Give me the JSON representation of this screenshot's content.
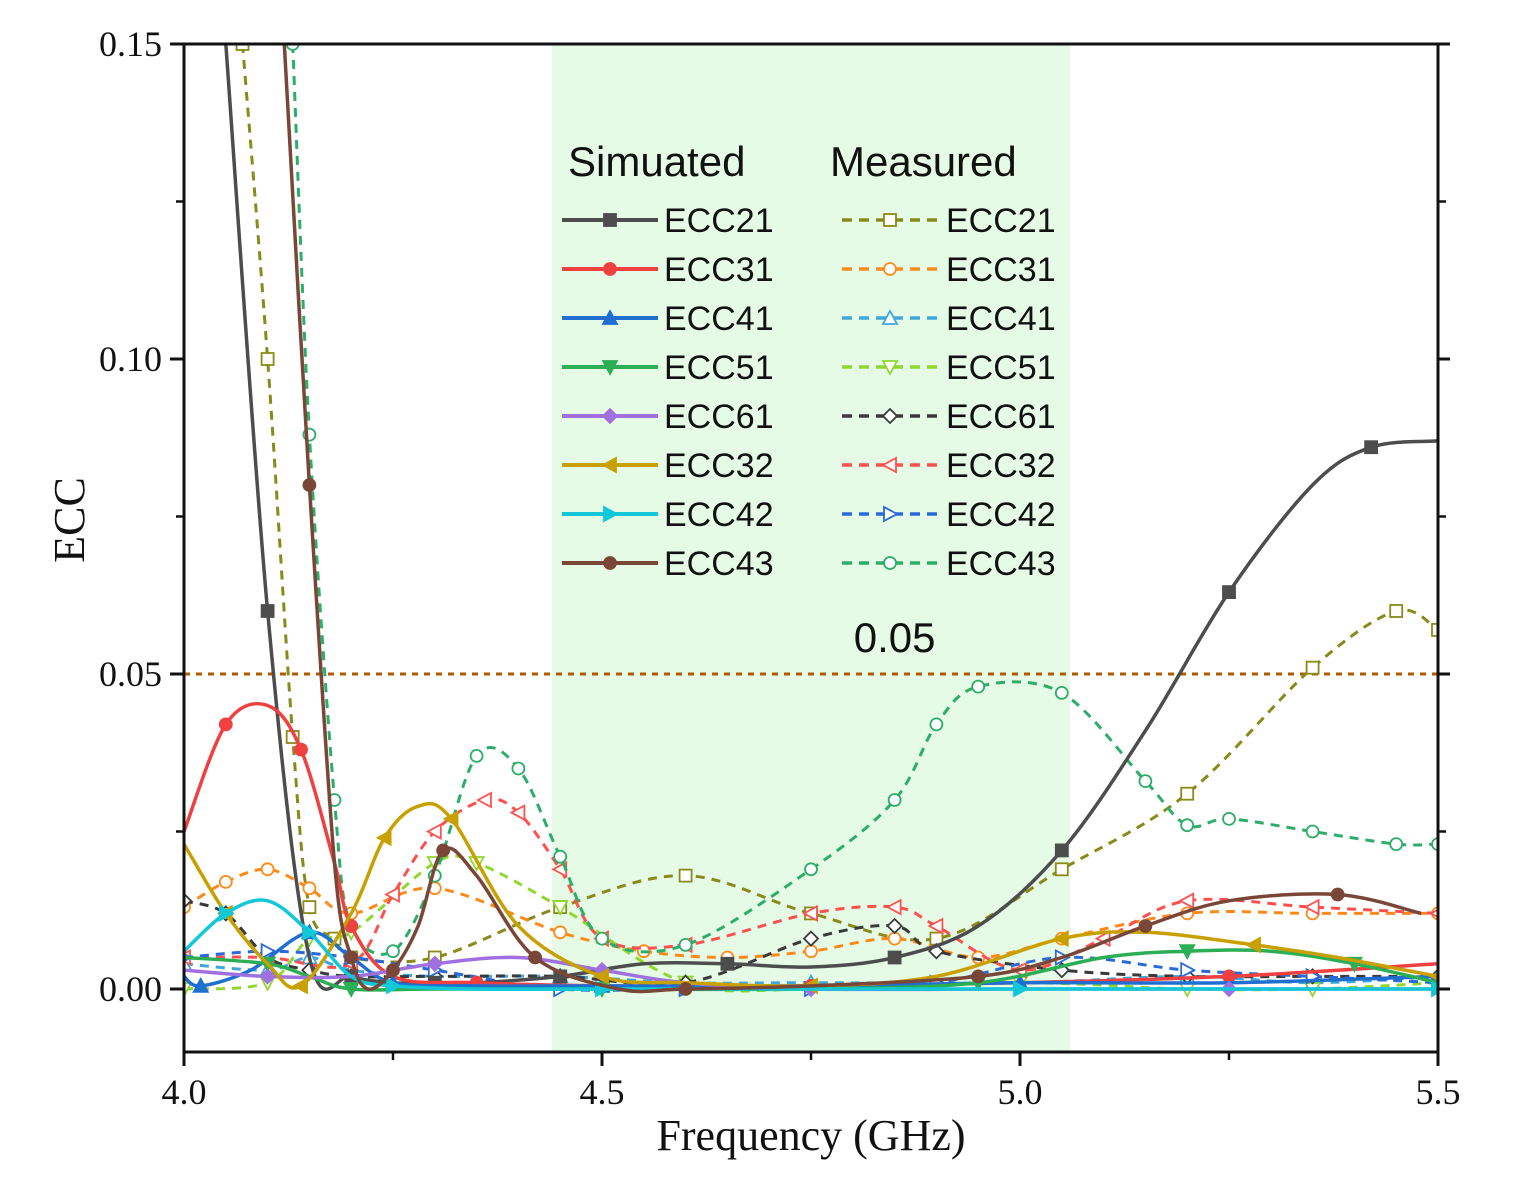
{
  "chart_data": {
    "type": "line",
    "xlabel": "Frequency (GHz)",
    "ylabel": "ECC",
    "xlim": [
      4.0,
      5.5
    ],
    "ylim": [
      -0.01,
      0.15
    ],
    "xticks": [
      "4.0",
      "4.5",
      "5.0",
      "5.5"
    ],
    "yticks": [
      "0.00",
      "0.05",
      "0.10",
      "0.15"
    ],
    "xtick_values": [
      4.0,
      4.5,
      5.0,
      5.5
    ],
    "ytick_values": [
      0.0,
      0.05,
      0.1,
      0.15
    ],
    "grid": false,
    "shaded_band": {
      "x_start": 4.44,
      "x_end": 5.06,
      "color": "#e6fbe6"
    },
    "reference_line": {
      "y": 0.05,
      "label": "0.05",
      "color": "#b35a00"
    },
    "legend_position": "top-center",
    "legend_headers": {
      "simulated": "Simuated",
      "measured": "Measured"
    },
    "simulated": [
      {
        "name": "ECC21",
        "color": "#4d4d4d",
        "marker": "square",
        "x": [
          4.05,
          4.1,
          4.15,
          4.2,
          4.25,
          4.3,
          4.35,
          4.45,
          4.55,
          4.65,
          4.75,
          4.85,
          4.95,
          5.05,
          5.15,
          5.25,
          5.35,
          5.42,
          5.5
        ],
        "y": [
          0.15,
          0.06,
          0.005,
          0.002,
          0.001,
          0.001,
          0.001,
          0.002,
          0.004,
          0.004,
          0.0035,
          0.005,
          0.01,
          0.022,
          0.041,
          0.063,
          0.08,
          0.086,
          0.087
        ]
      },
      {
        "name": "ECC31",
        "color": "#f04040",
        "marker": "circle",
        "x": [
          4.0,
          4.05,
          4.1,
          4.14,
          4.18,
          4.2,
          4.25,
          4.35,
          4.5,
          4.75,
          5.0,
          5.25,
          5.5
        ],
        "y": [
          0.025,
          0.042,
          0.045,
          0.038,
          0.02,
          0.01,
          0.002,
          0.001,
          0.0005,
          0.0005,
          0.001,
          0.002,
          0.004
        ]
      },
      {
        "name": "ECC41",
        "color": "#1f6fd1",
        "marker": "triangle-up",
        "x": [
          4.0,
          4.02,
          4.08,
          4.15,
          4.2,
          4.25,
          4.35,
          4.5,
          4.75,
          5.0,
          5.25,
          5.5
        ],
        "y": [
          0.002,
          0.0005,
          0.003,
          0.009,
          0.005,
          0.001,
          0.0005,
          0.0005,
          0.0005,
          0.001,
          0.001,
          0.002
        ]
      },
      {
        "name": "ECC51",
        "color": "#2cae55",
        "marker": "triangle-down",
        "x": [
          4.0,
          4.1,
          4.15,
          4.2,
          4.3,
          4.5,
          4.75,
          4.95,
          5.1,
          5.2,
          5.3,
          5.4,
          5.5
        ],
        "y": [
          0.005,
          0.004,
          0.002,
          0.0,
          0.0,
          0.0,
          0.0,
          0.001,
          0.005,
          0.006,
          0.006,
          0.004,
          0.001
        ]
      },
      {
        "name": "ECC61",
        "color": "#a070e0",
        "marker": "diamond",
        "x": [
          4.0,
          4.1,
          4.2,
          4.3,
          4.4,
          4.5,
          4.6,
          4.75,
          5.0,
          5.25,
          5.5
        ],
        "y": [
          0.003,
          0.002,
          0.002,
          0.004,
          0.005,
          0.003,
          0.001,
          0.0,
          0.0,
          0.0,
          0.0
        ]
      },
      {
        "name": "ECC32",
        "color": "#c8a000",
        "marker": "triangle-left",
        "x": [
          4.0,
          4.05,
          4.1,
          4.14,
          4.2,
          4.24,
          4.28,
          4.32,
          4.4,
          4.5,
          4.6,
          4.75,
          4.9,
          5.05,
          5.15,
          5.28,
          5.38,
          5.5
        ],
        "y": [
          0.023,
          0.012,
          0.004,
          0.0005,
          0.012,
          0.024,
          0.029,
          0.027,
          0.01,
          0.002,
          0.001,
          0.0005,
          0.002,
          0.008,
          0.009,
          0.007,
          0.005,
          0.002
        ]
      },
      {
        "name": "ECC42",
        "color": "#10c8d8",
        "marker": "triangle-right",
        "x": [
          4.0,
          4.05,
          4.1,
          4.15,
          4.2,
          4.25,
          4.35,
          4.5,
          4.75,
          5.0,
          5.25,
          5.5
        ],
        "y": [
          0.006,
          0.012,
          0.014,
          0.009,
          0.002,
          0.0005,
          0.0,
          0.0,
          0.0,
          0.0,
          0.0,
          0.0
        ]
      },
      {
        "name": "ECC43",
        "color": "#7a4638",
        "marker": "circle",
        "x": [
          4.12,
          4.15,
          4.18,
          4.2,
          4.22,
          4.25,
          4.28,
          4.31,
          4.35,
          4.42,
          4.52,
          4.6,
          4.75,
          4.95,
          5.05,
          5.15,
          5.25,
          5.38,
          5.48
        ],
        "y": [
          0.15,
          0.08,
          0.02,
          0.005,
          0.0,
          0.003,
          0.01,
          0.022,
          0.018,
          0.005,
          0.0,
          0.0,
          0.0005,
          0.002,
          0.005,
          0.01,
          0.014,
          0.015,
          0.012
        ]
      }
    ],
    "measured": [
      {
        "name": "ECC21",
        "color": "#8a8a1a",
        "marker": "open-square",
        "x": [
          4.07,
          4.1,
          4.13,
          4.15,
          4.18,
          4.2,
          4.3,
          4.45,
          4.6,
          4.75,
          4.9,
          5.05,
          5.2,
          5.35,
          5.45,
          5.5
        ],
        "y": [
          0.15,
          0.1,
          0.04,
          0.013,
          0.008,
          0.005,
          0.005,
          0.013,
          0.018,
          0.012,
          0.008,
          0.019,
          0.031,
          0.051,
          0.06,
          0.057
        ]
      },
      {
        "name": "ECC31",
        "color": "#ff8a1a",
        "marker": "open-circle",
        "x": [
          4.0,
          4.05,
          4.1,
          4.15,
          4.2,
          4.3,
          4.45,
          4.55,
          4.65,
          4.75,
          4.85,
          4.95,
          5.05,
          5.2,
          5.35,
          5.5
        ],
        "y": [
          0.013,
          0.017,
          0.019,
          0.016,
          0.012,
          0.016,
          0.009,
          0.006,
          0.005,
          0.006,
          0.008,
          0.005,
          0.008,
          0.012,
          0.012,
          0.012
        ]
      },
      {
        "name": "ECC41",
        "color": "#40a8d8",
        "marker": "open-triangle-up",
        "x": [
          4.0,
          4.1,
          4.15,
          4.2,
          4.3,
          4.45,
          4.6,
          4.75,
          5.0,
          5.2,
          5.35,
          5.5
        ],
        "y": [
          0.004,
          0.003,
          0.005,
          0.003,
          0.002,
          0.002,
          0.001,
          0.001,
          0.001,
          0.002,
          0.001,
          0.002
        ]
      },
      {
        "name": "ECC51",
        "color": "#90d830",
        "marker": "open-triangle-down",
        "x": [
          4.0,
          4.1,
          4.15,
          4.2,
          4.3,
          4.35,
          4.45,
          4.6,
          4.75,
          5.0,
          5.2,
          5.35,
          5.5
        ],
        "y": [
          0.0,
          0.001,
          0.008,
          0.009,
          0.02,
          0.02,
          0.013,
          0.001,
          0.0,
          0.001,
          0.0,
          0.0,
          0.001
        ]
      },
      {
        "name": "ECC61",
        "color": "#3a3a3a",
        "marker": "open-diamond",
        "x": [
          4.0,
          4.05,
          4.1,
          4.15,
          4.2,
          4.3,
          4.45,
          4.6,
          4.75,
          4.85,
          4.9,
          5.05,
          5.2,
          5.35,
          5.5
        ],
        "y": [
          0.014,
          0.012,
          0.005,
          0.003,
          0.002,
          0.002,
          0.002,
          0.001,
          0.008,
          0.01,
          0.006,
          0.003,
          0.002,
          0.002,
          0.002
        ]
      },
      {
        "name": "ECC32",
        "color": "#ff5050",
        "marker": "open-triangle-left",
        "x": [
          4.0,
          4.1,
          4.2,
          4.25,
          4.3,
          4.36,
          4.4,
          4.45,
          4.5,
          4.6,
          4.75,
          4.85,
          4.9,
          5.0,
          5.1,
          5.2,
          5.35,
          5.5
        ],
        "y": [
          0.005,
          0.005,
          0.004,
          0.015,
          0.025,
          0.03,
          0.028,
          0.019,
          0.008,
          0.007,
          0.012,
          0.013,
          0.01,
          0.003,
          0.008,
          0.014,
          0.013,
          0.012
        ]
      },
      {
        "name": "ECC42",
        "color": "#2a6ad8",
        "marker": "open-triangle-right",
        "x": [
          4.0,
          4.1,
          4.2,
          4.3,
          4.45,
          4.6,
          4.75,
          4.9,
          5.05,
          5.2,
          5.35,
          5.5
        ],
        "y": [
          0.005,
          0.006,
          0.005,
          0.003,
          0.0,
          0.0,
          0.0,
          0.001,
          0.005,
          0.003,
          0.002,
          0.001
        ]
      },
      {
        "name": "ECC43",
        "color": "#2cae6a",
        "marker": "open-circle",
        "x": [
          4.13,
          4.15,
          4.18,
          4.2,
          4.25,
          4.3,
          4.35,
          4.4,
          4.45,
          4.5,
          4.6,
          4.75,
          4.85,
          4.9,
          4.95,
          5.05,
          5.15,
          5.2,
          5.25,
          5.35,
          5.45,
          5.5
        ],
        "y": [
          0.15,
          0.088,
          0.03,
          0.01,
          0.006,
          0.018,
          0.037,
          0.035,
          0.021,
          0.008,
          0.007,
          0.019,
          0.03,
          0.042,
          0.048,
          0.047,
          0.033,
          0.026,
          0.027,
          0.025,
          0.023,
          0.023
        ]
      }
    ]
  }
}
